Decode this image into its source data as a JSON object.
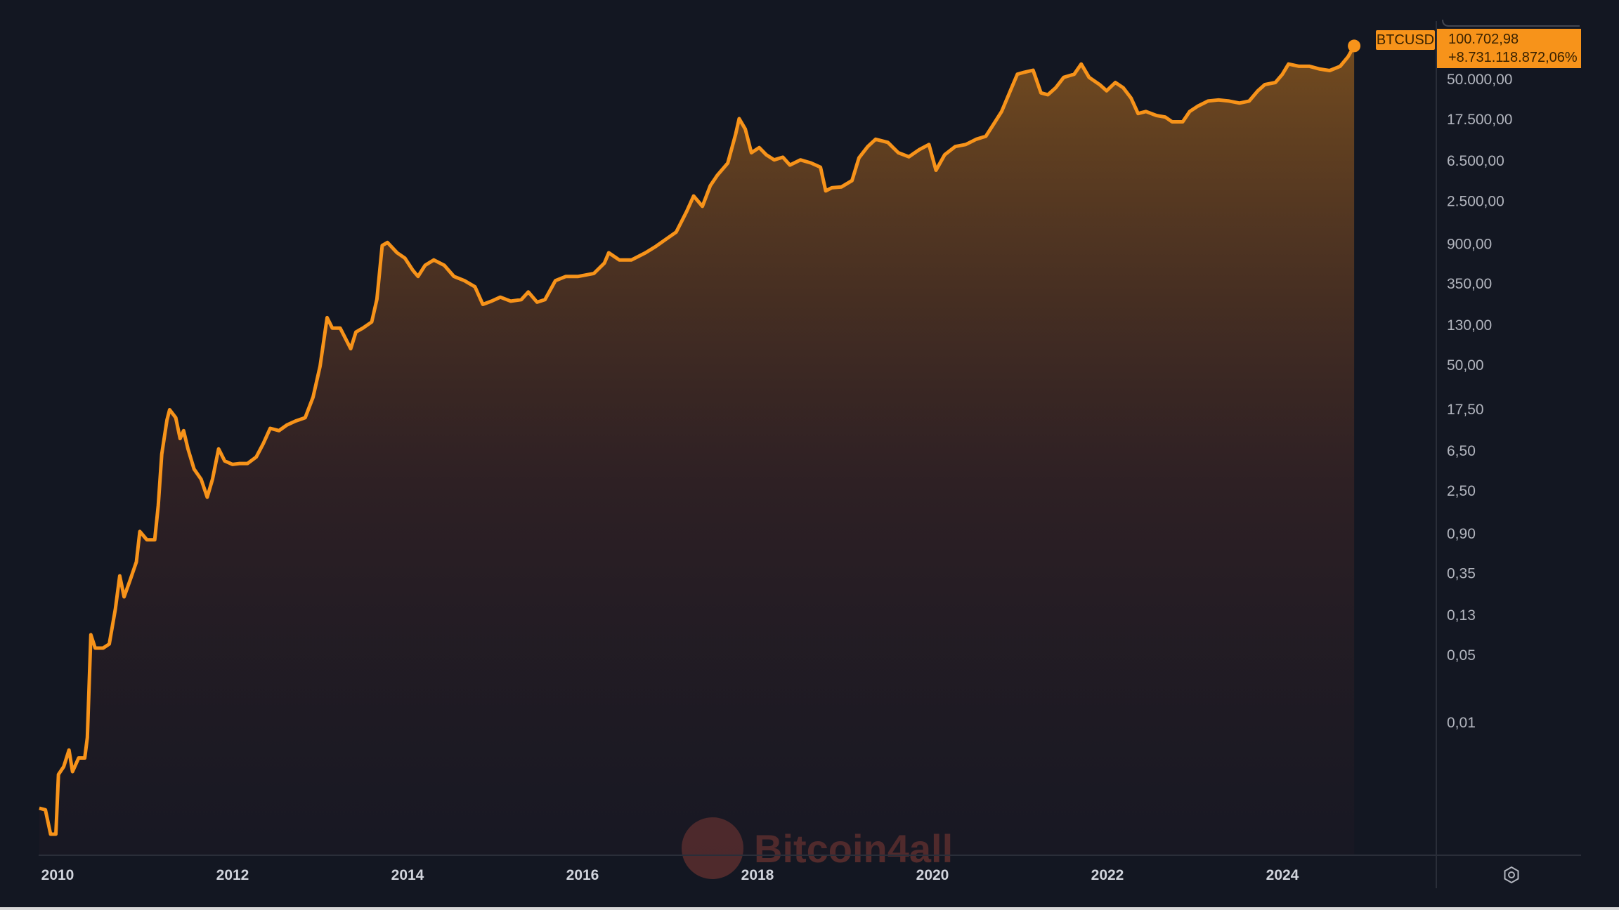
{
  "chart_data": {
    "type": "area",
    "title": "",
    "symbol": "BTCUSD",
    "last_price_label": "100.702,98",
    "change_label": "+8.731.118.872,06%",
    "yscale": "log",
    "ylim": [
      0.0005,
      120000
    ],
    "xlim": [
      2009.75,
      2025.0
    ],
    "grid": false,
    "x_ticks": [
      {
        "value": 2010,
        "label": "2010"
      },
      {
        "value": 2012,
        "label": "2012"
      },
      {
        "value": 2014,
        "label": "2014"
      },
      {
        "value": 2016,
        "label": "2016"
      },
      {
        "value": 2018,
        "label": "2018"
      },
      {
        "value": 2020,
        "label": "2020"
      },
      {
        "value": 2022,
        "label": "2022"
      },
      {
        "value": 2024,
        "label": "2024"
      }
    ],
    "y_ticks": [
      {
        "value": 50000,
        "label": "50.000,00"
      },
      {
        "value": 17500,
        "label": "17.500,00"
      },
      {
        "value": 6500,
        "label": "6.500,00"
      },
      {
        "value": 2500,
        "label": "2.500,00"
      },
      {
        "value": 900,
        "label": "900,00"
      },
      {
        "value": 350,
        "label": "350,00"
      },
      {
        "value": 130,
        "label": "130,00"
      },
      {
        "value": 50,
        "label": "50,00"
      },
      {
        "value": 17.5,
        "label": "17,50"
      },
      {
        "value": 6.5,
        "label": "6,50"
      },
      {
        "value": 2.5,
        "label": "2,50"
      },
      {
        "value": 0.9,
        "label": "0,90"
      },
      {
        "value": 0.35,
        "label": "0,35"
      },
      {
        "value": 0.13,
        "label": "0,13"
      },
      {
        "value": 0.05,
        "label": "0,05"
      },
      {
        "value": 0.01,
        "label": "0,01"
      }
    ],
    "series": [
      {
        "name": "BTCUSD",
        "color": "#f7931a",
        "points": [
          [
            2009.79,
            0.0013
          ],
          [
            2009.86,
            0.00125
          ],
          [
            2009.92,
            0.0007
          ],
          [
            2009.98,
            0.0007
          ],
          [
            2010.01,
            0.0029
          ],
          [
            2010.07,
            0.0035
          ],
          [
            2010.13,
            0.0052
          ],
          [
            2010.17,
            0.0031
          ],
          [
            2010.24,
            0.0043
          ],
          [
            2010.31,
            0.0043
          ],
          [
            2010.34,
            0.007
          ],
          [
            2010.38,
            0.081
          ],
          [
            2010.43,
            0.059
          ],
          [
            2010.52,
            0.059
          ],
          [
            2010.59,
            0.065
          ],
          [
            2010.66,
            0.15
          ],
          [
            2010.71,
            0.33
          ],
          [
            2010.76,
            0.2
          ],
          [
            2010.83,
            0.3
          ],
          [
            2010.9,
            0.46
          ],
          [
            2010.94,
            0.95
          ],
          [
            2011.02,
            0.78
          ],
          [
            2011.11,
            0.78
          ],
          [
            2011.15,
            1.76
          ],
          [
            2011.19,
            6.0
          ],
          [
            2011.25,
            13.5
          ],
          [
            2011.28,
            17.3
          ],
          [
            2011.35,
            14.3
          ],
          [
            2011.4,
            8.7
          ],
          [
            2011.44,
            10.5
          ],
          [
            2011.49,
            6.8
          ],
          [
            2011.56,
            4.2
          ],
          [
            2011.64,
            3.3
          ],
          [
            2011.71,
            2.15
          ],
          [
            2011.77,
            3.3
          ],
          [
            2011.84,
            6.8
          ],
          [
            2011.91,
            5.1
          ],
          [
            2012.0,
            4.7
          ],
          [
            2012.08,
            4.8
          ],
          [
            2012.17,
            4.8
          ],
          [
            2012.27,
            5.6
          ],
          [
            2012.35,
            7.7
          ],
          [
            2012.43,
            11.1
          ],
          [
            2012.53,
            10.5
          ],
          [
            2012.62,
            12.0
          ],
          [
            2012.72,
            13.2
          ],
          [
            2012.83,
            14.3
          ],
          [
            2012.92,
            23.3
          ],
          [
            2013.0,
            48.7
          ],
          [
            2013.08,
            155
          ],
          [
            2013.14,
            121
          ],
          [
            2013.23,
            121
          ],
          [
            2013.35,
            74
          ],
          [
            2013.41,
            110
          ],
          [
            2013.49,
            121
          ],
          [
            2013.59,
            140
          ],
          [
            2013.65,
            241
          ],
          [
            2013.71,
            865
          ],
          [
            2013.77,
            931
          ],
          [
            2013.88,
            728
          ],
          [
            2013.97,
            640
          ],
          [
            2014.06,
            480
          ],
          [
            2014.12,
            414
          ],
          [
            2014.2,
            540
          ],
          [
            2014.3,
            614
          ],
          [
            2014.42,
            540
          ],
          [
            2014.53,
            414
          ],
          [
            2014.65,
            375
          ],
          [
            2014.77,
            324
          ],
          [
            2014.86,
            213
          ],
          [
            2014.96,
            230
          ],
          [
            2015.06,
            253
          ],
          [
            2015.18,
            230
          ],
          [
            2015.3,
            238
          ],
          [
            2015.38,
            286
          ],
          [
            2015.48,
            224
          ],
          [
            2015.57,
            238
          ],
          [
            2015.69,
            375
          ],
          [
            2015.81,
            414
          ],
          [
            2015.95,
            414
          ],
          [
            2016.13,
            445
          ],
          [
            2016.25,
            569
          ],
          [
            2016.3,
            728
          ],
          [
            2016.42,
            614
          ],
          [
            2016.56,
            614
          ],
          [
            2016.72,
            728
          ],
          [
            2016.84,
            850
          ],
          [
            2016.95,
            1000
          ],
          [
            2017.07,
            1190
          ],
          [
            2017.19,
            1950
          ],
          [
            2017.27,
            2820
          ],
          [
            2017.37,
            2200
          ],
          [
            2017.46,
            3600
          ],
          [
            2017.54,
            4600
          ],
          [
            2017.66,
            6180
          ],
          [
            2017.75,
            12300
          ],
          [
            2017.79,
            17800
          ],
          [
            2017.86,
            13900
          ],
          [
            2017.93,
            7900
          ],
          [
            2018.02,
            8930
          ],
          [
            2018.1,
            7530
          ],
          [
            2018.19,
            6660
          ],
          [
            2018.29,
            7100
          ],
          [
            2018.37,
            5890
          ],
          [
            2018.49,
            6660
          ],
          [
            2018.61,
            6200
          ],
          [
            2018.72,
            5600
          ],
          [
            2018.78,
            3180
          ],
          [
            2018.85,
            3430
          ],
          [
            2018.96,
            3500
          ],
          [
            2019.08,
            4070
          ],
          [
            2019.16,
            7000
          ],
          [
            2019.26,
            9160
          ],
          [
            2019.35,
            10900
          ],
          [
            2019.49,
            10100
          ],
          [
            2019.61,
            7900
          ],
          [
            2019.73,
            7170
          ],
          [
            2019.85,
            8510
          ],
          [
            2019.96,
            9620
          ],
          [
            2020.04,
            5200
          ],
          [
            2020.14,
            7530
          ],
          [
            2020.26,
            9160
          ],
          [
            2020.38,
            9620
          ],
          [
            2020.5,
            10900
          ],
          [
            2020.61,
            11700
          ],
          [
            2020.7,
            15700
          ],
          [
            2020.79,
            21100
          ],
          [
            2020.89,
            34600
          ],
          [
            2020.97,
            51300
          ],
          [
            2021.05,
            53800
          ],
          [
            2021.15,
            56500
          ],
          [
            2021.24,
            32900
          ],
          [
            2021.32,
            31500
          ],
          [
            2021.41,
            37200
          ],
          [
            2021.5,
            47600
          ],
          [
            2021.62,
            51300
          ],
          [
            2021.7,
            65400
          ],
          [
            2021.79,
            47600
          ],
          [
            2021.91,
            40100
          ],
          [
            2021.99,
            34600
          ],
          [
            2022.09,
            42100
          ],
          [
            2022.18,
            37200
          ],
          [
            2022.27,
            29100
          ],
          [
            2022.35,
            20100
          ],
          [
            2022.44,
            21100
          ],
          [
            2022.56,
            19200
          ],
          [
            2022.66,
            18500
          ],
          [
            2022.74,
            16500
          ],
          [
            2022.86,
            16500
          ],
          [
            2022.94,
            21100
          ],
          [
            2023.03,
            23900
          ],
          [
            2023.15,
            27100
          ],
          [
            2023.27,
            27800
          ],
          [
            2023.39,
            27100
          ],
          [
            2023.51,
            25800
          ],
          [
            2023.62,
            27100
          ],
          [
            2023.72,
            34600
          ],
          [
            2023.8,
            40100
          ],
          [
            2023.92,
            42100
          ],
          [
            2024.0,
            51300
          ],
          [
            2024.07,
            65400
          ],
          [
            2024.19,
            62000
          ],
          [
            2024.31,
            62000
          ],
          [
            2024.43,
            58000
          ],
          [
            2024.54,
            56000
          ],
          [
            2024.66,
            62000
          ],
          [
            2024.75,
            77900
          ],
          [
            2024.82,
            100703
          ]
        ]
      }
    ]
  },
  "watermark": {
    "text": "Bitcoin4all"
  },
  "icons": {
    "settings": "gear-icon"
  }
}
